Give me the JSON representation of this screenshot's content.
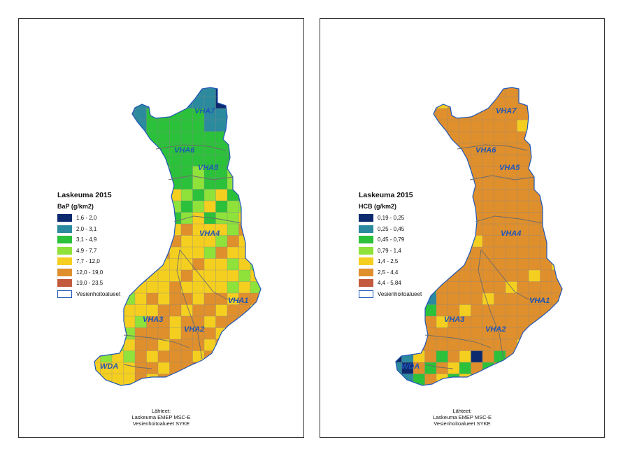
{
  "maps": [
    {
      "id": "bap",
      "legend": {
        "title": "Laskeuma 2015",
        "unit": "BaP (g/km2)",
        "classes": [
          {
            "label": "1,6 - 2,0",
            "color": "#0d2a6e"
          },
          {
            "label": "2,0 - 3,1",
            "color": "#2b8a9e"
          },
          {
            "label": "3,1 - 4,9",
            "color": "#2cc13a"
          },
          {
            "label": "4,9 - 7,7",
            "color": "#8ee23a"
          },
          {
            "label": "7,7 - 12,0",
            "color": "#f5cf1f"
          },
          {
            "label": "12,0 - 19,0",
            "color": "#df8f2c"
          },
          {
            "label": "19,0 - 23,5",
            "color": "#c35a3e"
          }
        ],
        "boundary_label": "Vesienhoitoalueet"
      },
      "regions": [
        "VHA7",
        "VHA6",
        "VHA5",
        "VHA4",
        "VHA3",
        "VHA2",
        "VHA1",
        "WDA"
      ],
      "source": [
        "Lähteet:",
        "Laskeuma EMEP MSC-E",
        "Vesienhoitoalueet SYKE"
      ]
    },
    {
      "id": "hcb",
      "legend": {
        "title": "Laskeuma 2015",
        "unit": "HCB (g/km2)",
        "classes": [
          {
            "label": "0,19 - 0,25",
            "color": "#0d2a6e"
          },
          {
            "label": "0,25 - 0,45",
            "color": "#2b8a9e"
          },
          {
            "label": "0,45 - 0,79",
            "color": "#2cc13a"
          },
          {
            "label": "0,79 - 1,4",
            "color": "#8ee23a"
          },
          {
            "label": "1,4 - 2,5",
            "color": "#f5cf1f"
          },
          {
            "label": "2,5 - 4,4",
            "color": "#df8f2c"
          },
          {
            "label": "4,4 - 5,84",
            "color": "#c35a3e"
          }
        ],
        "boundary_label": "Vesienhoitoalueet"
      },
      "regions": [
        "VHA7",
        "VHA6",
        "VHA5",
        "VHA4",
        "VHA3",
        "VHA2",
        "VHA1",
        "WDA"
      ],
      "source": [
        "Lähteet:",
        "Laskeuma EMEP MSC-E",
        "Vesienhoitoalueet SYKE"
      ]
    }
  ]
}
